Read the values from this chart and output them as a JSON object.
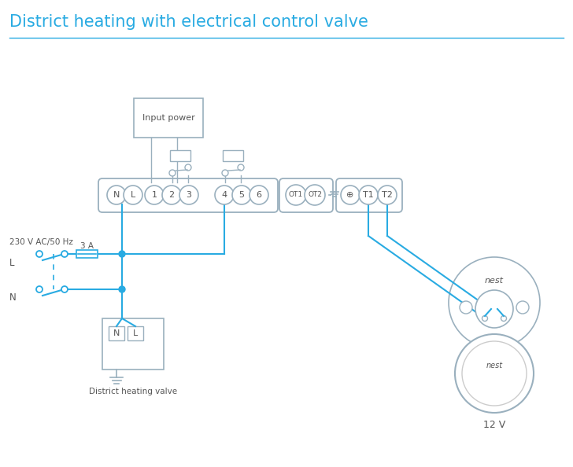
{
  "title": "District heating with electrical control valve",
  "title_color": "#29abe2",
  "title_fontsize": 15,
  "bg_color": "#ffffff",
  "wire_color": "#29abe2",
  "outline_color": "#9ab0be",
  "text_color": "#555555",
  "terminal_labels": [
    "N",
    "L",
    "1",
    "2",
    "3",
    "4",
    "5",
    "6"
  ],
  "ot_labels": [
    "OT1",
    "OT2"
  ],
  "label_230v": "230 V AC/50 Hz",
  "label_L": "L",
  "label_N": "N",
  "label_3A": "3 A",
  "label_input_power": "Input power",
  "label_valve": "District heating valve",
  "label_12v": "12 V",
  "label_nest": "nest"
}
